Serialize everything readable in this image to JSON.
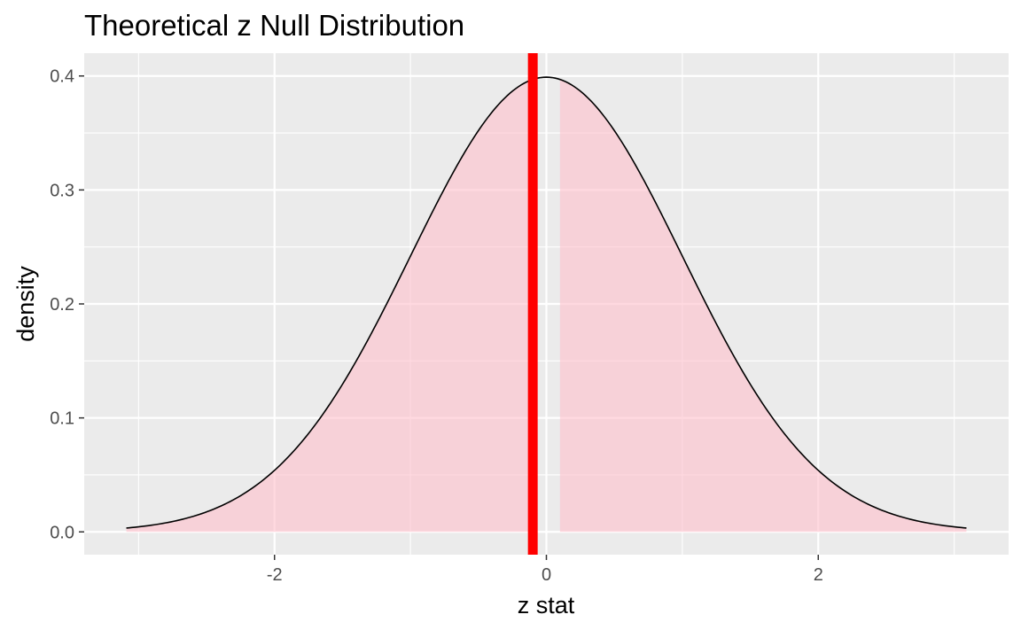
{
  "chart_data": {
    "type": "area",
    "title": "Theoretical z Null Distribution",
    "xlabel": "z stat",
    "ylabel": "density",
    "xlim": [
      -3.4,
      3.4
    ],
    "ylim": [
      -0.02,
      0.42
    ],
    "x_ticks": [
      {
        "value": -2,
        "label": "-2"
      },
      {
        "value": 0,
        "label": "0"
      },
      {
        "value": 2,
        "label": "2"
      }
    ],
    "y_ticks": [
      {
        "value": 0.0,
        "label": "0.0"
      },
      {
        "value": 0.1,
        "label": "0.1"
      },
      {
        "value": 0.2,
        "label": "0.2"
      },
      {
        "value": 0.3,
        "label": "0.3"
      },
      {
        "value": 0.4,
        "label": "0.4"
      }
    ],
    "grid": true,
    "series": [
      {
        "distribution": "standard normal",
        "x_range": [
          -3.09,
          3.09
        ],
        "shaded_intervals": [
          [
            -3.09,
            -0.1
          ],
          [
            0.1,
            3.09
          ]
        ]
      }
    ],
    "observed_stat": -0.1,
    "colors": {
      "panel": "#ebebeb",
      "grid": "#ffffff",
      "curve": "#000000",
      "shade": "#ffc0cb",
      "observed_line": "#ff0000"
    }
  }
}
